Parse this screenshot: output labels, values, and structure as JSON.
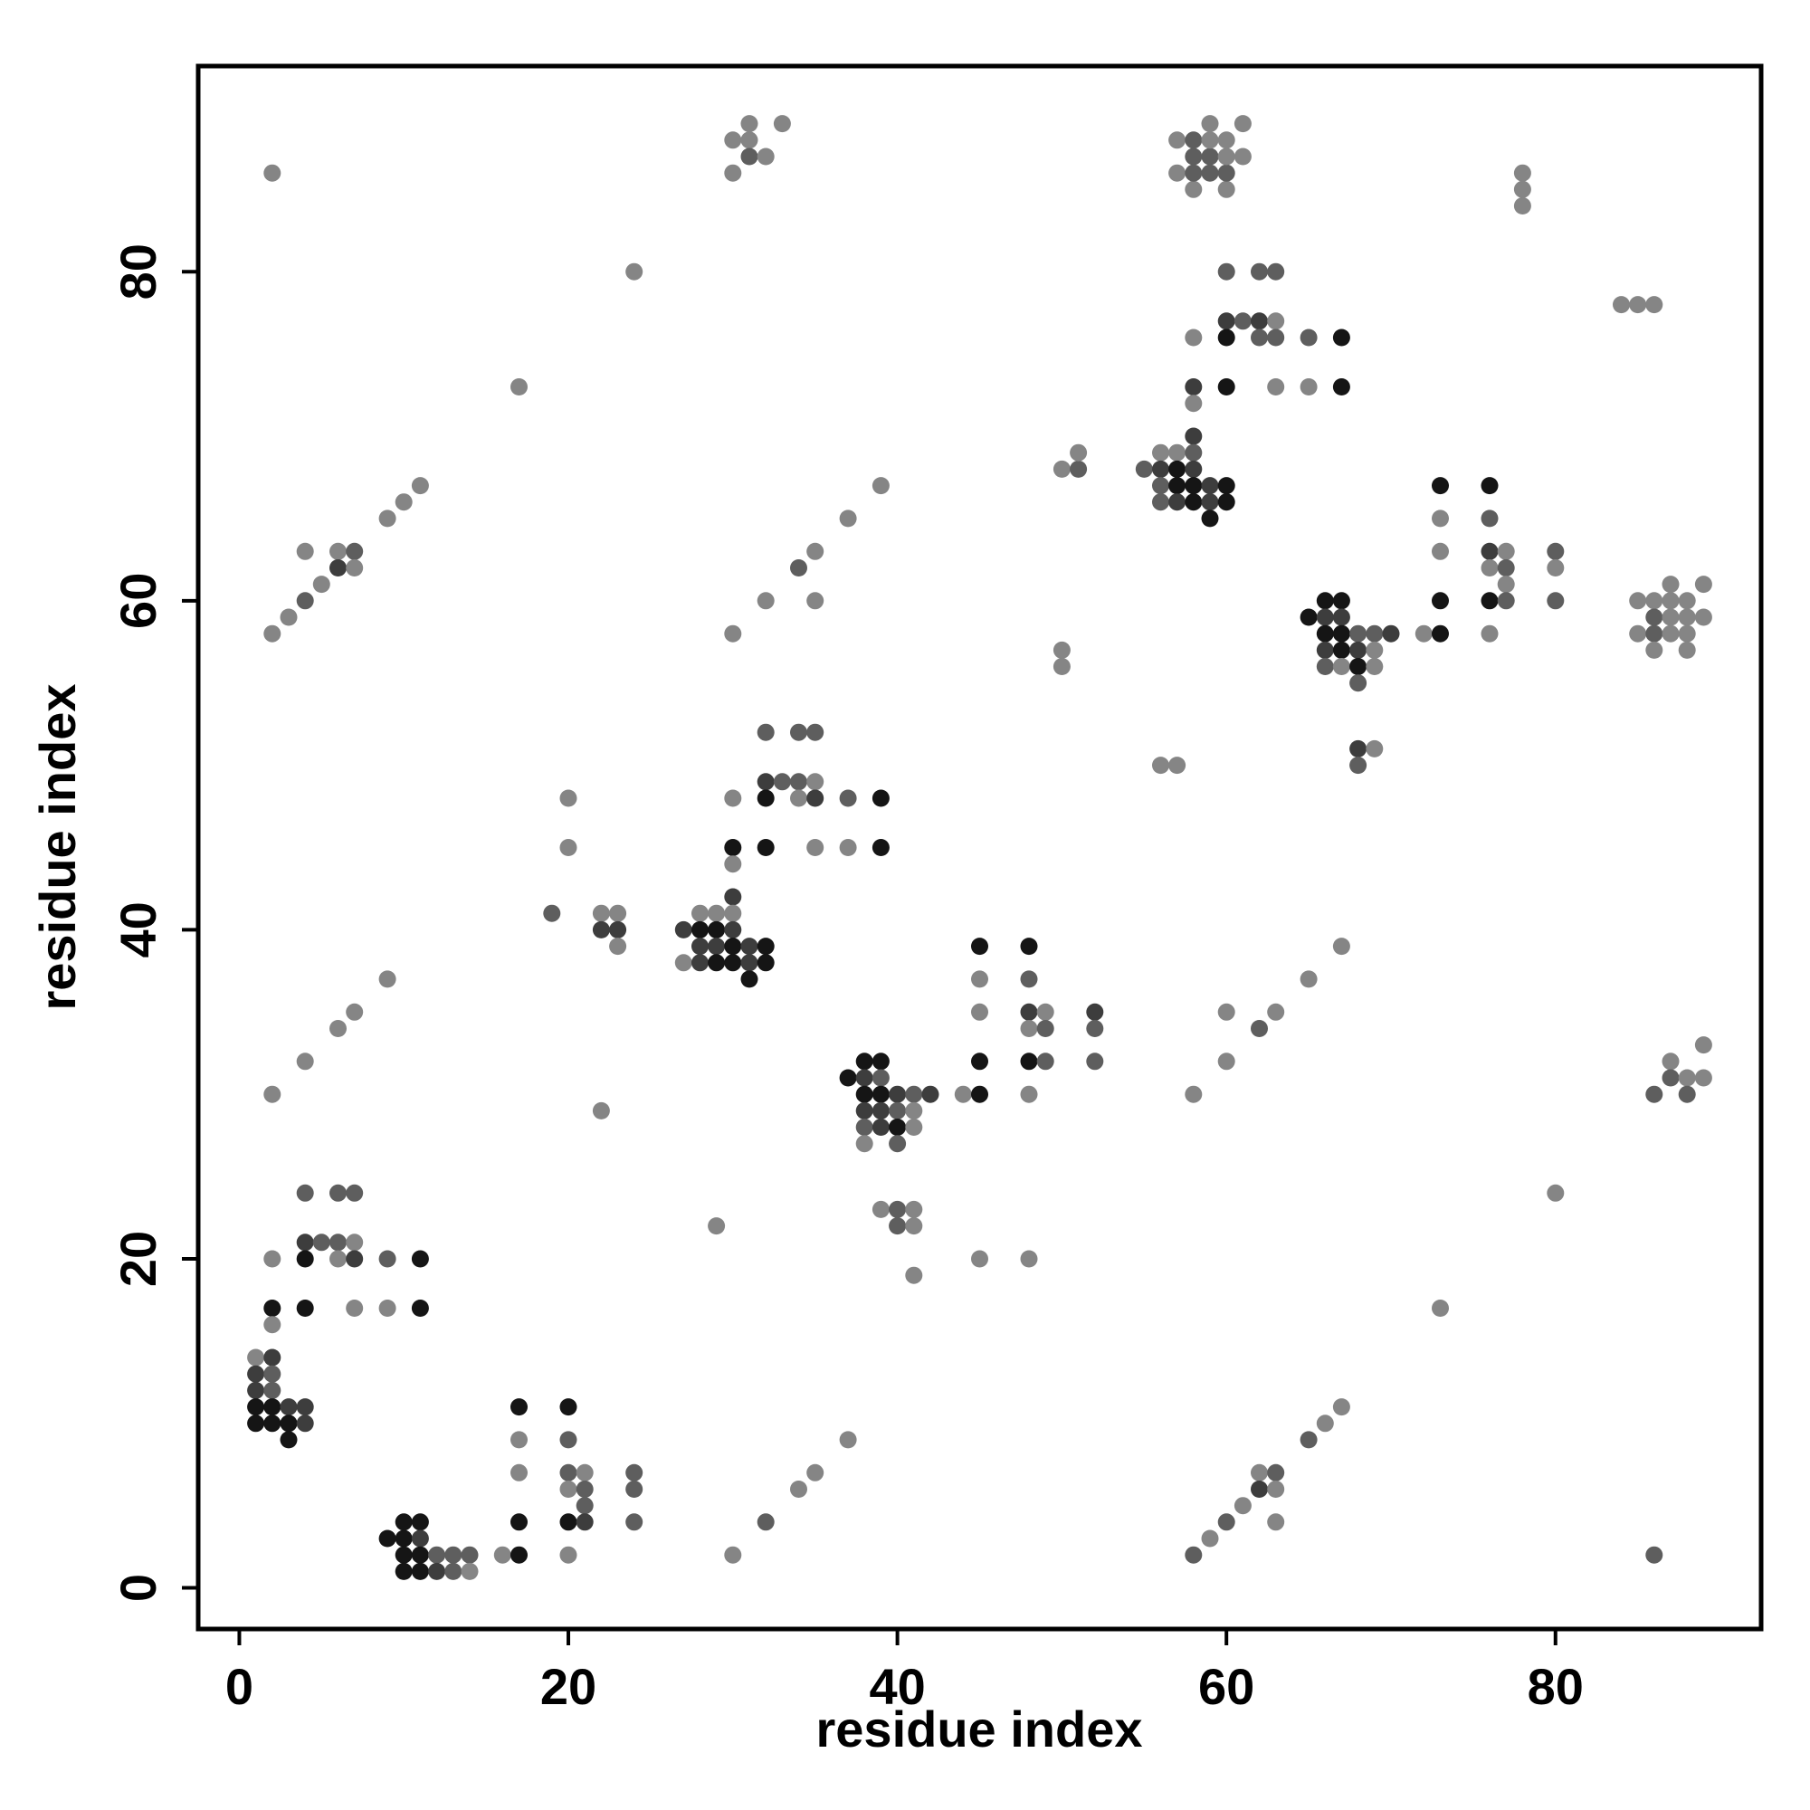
{
  "chart_data": {
    "type": "scatter",
    "xlabel": "residue index",
    "ylabel": "residue index",
    "xlim": [
      -2.5,
      92.5
    ],
    "ylim": [
      -2.5,
      92.5
    ],
    "x_ticks": [
      0,
      20,
      40,
      60,
      80
    ],
    "y_ticks": [
      0,
      20,
      40,
      60,
      80
    ],
    "grid": false,
    "legend": "none",
    "shade_levels": {
      "1": "#151515",
      "2": "#3d3d3d",
      "3": "#5e5e5e",
      "4": "#858585"
    },
    "points": [
      [
        2,
        86,
        4
      ],
      [
        30,
        86,
        4
      ],
      [
        30,
        88,
        4
      ],
      [
        31,
        89,
        4
      ],
      [
        31,
        88,
        4
      ],
      [
        31,
        87,
        3
      ],
      [
        32,
        87,
        4
      ],
      [
        33,
        89,
        4
      ],
      [
        57,
        86,
        4
      ],
      [
        57,
        88,
        4
      ],
      [
        58,
        85,
        4
      ],
      [
        58,
        86,
        3
      ],
      [
        58,
        87,
        3
      ],
      [
        58,
        88,
        3
      ],
      [
        59,
        86,
        3
      ],
      [
        59,
        87,
        3
      ],
      [
        59,
        88,
        4
      ],
      [
        59,
        89,
        4
      ],
      [
        60,
        85,
        4
      ],
      [
        60,
        86,
        3
      ],
      [
        60,
        87,
        4
      ],
      [
        60,
        88,
        4
      ],
      [
        61,
        87,
        4
      ],
      [
        61,
        89,
        4
      ],
      [
        78,
        86,
        4
      ],
      [
        78,
        85,
        4
      ],
      [
        78,
        84,
        4
      ],
      [
        24,
        80,
        4
      ],
      [
        60,
        80,
        3
      ],
      [
        62,
        80,
        3
      ],
      [
        63,
        80,
        3
      ],
      [
        84,
        78,
        4
      ],
      [
        85,
        78,
        4
      ],
      [
        86,
        78,
        4
      ],
      [
        58,
        76,
        4
      ],
      [
        60,
        77,
        2
      ],
      [
        60,
        76,
        1
      ],
      [
        61,
        77,
        3
      ],
      [
        62,
        77,
        2
      ],
      [
        62,
        76,
        3
      ],
      [
        63,
        77,
        4
      ],
      [
        63,
        76,
        3
      ],
      [
        65,
        76,
        3
      ],
      [
        67,
        76,
        1
      ],
      [
        17,
        73,
        4
      ],
      [
        58,
        73,
        2
      ],
      [
        60,
        73,
        1
      ],
      [
        63,
        73,
        4
      ],
      [
        65,
        73,
        4
      ],
      [
        67,
        73,
        1
      ],
      [
        58,
        72,
        4
      ],
      [
        58,
        70,
        2
      ],
      [
        56,
        69,
        4
      ],
      [
        57,
        69,
        4
      ],
      [
        58,
        69,
        3
      ],
      [
        50,
        68,
        4
      ],
      [
        51,
        68,
        3
      ],
      [
        51,
        69,
        4
      ],
      [
        55,
        68,
        3
      ],
      [
        56,
        68,
        2
      ],
      [
        57,
        68,
        1
      ],
      [
        58,
        68,
        2
      ],
      [
        56,
        67,
        3
      ],
      [
        57,
        67,
        1
      ],
      [
        58,
        67,
        1
      ],
      [
        59,
        67,
        2
      ],
      [
        60,
        67,
        1
      ],
      [
        56,
        66,
        3
      ],
      [
        57,
        66,
        2
      ],
      [
        58,
        66,
        1
      ],
      [
        59,
        66,
        2
      ],
      [
        60,
        66,
        1
      ],
      [
        59,
        65,
        1
      ],
      [
        11,
        67,
        4
      ],
      [
        10,
        66,
        4
      ],
      [
        9,
        65,
        4
      ],
      [
        39,
        67,
        4
      ],
      [
        37,
        65,
        4
      ],
      [
        73,
        67,
        1
      ],
      [
        76,
        67,
        1
      ],
      [
        73,
        65,
        4
      ],
      [
        76,
        65,
        3
      ],
      [
        4,
        63,
        4
      ],
      [
        6,
        63,
        4
      ],
      [
        7,
        63,
        3
      ],
      [
        6,
        62,
        2
      ],
      [
        7,
        62,
        4
      ],
      [
        5,
        61,
        4
      ],
      [
        4,
        60,
        3
      ],
      [
        3,
        59,
        4
      ],
      [
        2,
        58,
        4
      ],
      [
        35,
        63,
        4
      ],
      [
        34,
        62,
        3
      ],
      [
        32,
        60,
        4
      ],
      [
        35,
        60,
        4
      ],
      [
        30,
        58,
        4
      ],
      [
        73,
        63,
        4
      ],
      [
        76,
        63,
        2
      ],
      [
        77,
        63,
        4
      ],
      [
        80,
        63,
        3
      ],
      [
        76,
        62,
        4
      ],
      [
        77,
        62,
        3
      ],
      [
        80,
        62,
        4
      ],
      [
        77,
        61,
        4
      ],
      [
        73,
        60,
        1
      ],
      [
        76,
        60,
        1
      ],
      [
        77,
        60,
        3
      ],
      [
        80,
        60,
        3
      ],
      [
        76,
        58,
        4
      ],
      [
        72,
        58,
        4
      ],
      [
        73,
        58,
        1
      ],
      [
        87,
        61,
        4
      ],
      [
        89,
        61,
        4
      ],
      [
        85,
        60,
        4
      ],
      [
        86,
        60,
        4
      ],
      [
        87,
        60,
        4
      ],
      [
        88,
        60,
        4
      ],
      [
        86,
        59,
        3
      ],
      [
        87,
        59,
        4
      ],
      [
        88,
        59,
        4
      ],
      [
        89,
        59,
        4
      ],
      [
        85,
        58,
        4
      ],
      [
        86,
        58,
        3
      ],
      [
        87,
        58,
        4
      ],
      [
        88,
        58,
        4
      ],
      [
        86,
        57,
        4
      ],
      [
        88,
        57,
        4
      ],
      [
        66,
        60,
        1
      ],
      [
        67,
        60,
        1
      ],
      [
        65,
        59,
        1
      ],
      [
        66,
        59,
        2
      ],
      [
        67,
        59,
        2
      ],
      [
        66,
        58,
        1
      ],
      [
        67,
        58,
        1
      ],
      [
        68,
        58,
        3
      ],
      [
        69,
        58,
        3
      ],
      [
        70,
        58,
        2
      ],
      [
        66,
        57,
        2
      ],
      [
        67,
        57,
        1
      ],
      [
        68,
        57,
        2
      ],
      [
        69,
        57,
        4
      ],
      [
        66,
        56,
        3
      ],
      [
        67,
        56,
        4
      ],
      [
        68,
        56,
        1
      ],
      [
        69,
        56,
        4
      ],
      [
        68,
        55,
        3
      ],
      [
        50,
        57,
        4
      ],
      [
        50,
        56,
        4
      ],
      [
        56,
        50,
        4
      ],
      [
        57,
        50,
        4
      ],
      [
        68,
        51,
        2
      ],
      [
        69,
        51,
        4
      ],
      [
        68,
        50,
        3
      ],
      [
        32,
        52,
        3
      ],
      [
        34,
        52,
        3
      ],
      [
        35,
        52,
        3
      ],
      [
        32,
        49,
        2
      ],
      [
        33,
        49,
        3
      ],
      [
        34,
        49,
        3
      ],
      [
        35,
        49,
        4
      ],
      [
        20,
        48,
        4
      ],
      [
        30,
        48,
        4
      ],
      [
        32,
        48,
        1
      ],
      [
        34,
        48,
        4
      ],
      [
        35,
        48,
        2
      ],
      [
        37,
        48,
        3
      ],
      [
        39,
        48,
        1
      ],
      [
        20,
        45,
        4
      ],
      [
        30,
        45,
        1
      ],
      [
        32,
        45,
        1
      ],
      [
        35,
        45,
        4
      ],
      [
        37,
        45,
        4
      ],
      [
        39,
        45,
        1
      ],
      [
        30,
        44,
        4
      ],
      [
        30,
        42,
        2
      ],
      [
        19,
        41,
        3
      ],
      [
        22,
        41,
        4
      ],
      [
        23,
        41,
        4
      ],
      [
        22,
        40,
        2
      ],
      [
        23,
        40,
        2
      ],
      [
        23,
        39,
        4
      ],
      [
        28,
        41,
        4
      ],
      [
        29,
        41,
        4
      ],
      [
        30,
        41,
        4
      ],
      [
        27,
        40,
        2
      ],
      [
        28,
        40,
        1
      ],
      [
        29,
        40,
        1
      ],
      [
        30,
        40,
        2
      ],
      [
        28,
        39,
        2
      ],
      [
        29,
        39,
        2
      ],
      [
        30,
        39,
        1
      ],
      [
        31,
        39,
        2
      ],
      [
        32,
        39,
        1
      ],
      [
        27,
        38,
        4
      ],
      [
        28,
        38,
        2
      ],
      [
        29,
        38,
        1
      ],
      [
        30,
        38,
        1
      ],
      [
        31,
        38,
        2
      ],
      [
        32,
        38,
        1
      ],
      [
        31,
        37,
        1
      ],
      [
        9,
        37,
        4
      ],
      [
        7,
        35,
        4
      ],
      [
        6,
        34,
        4
      ],
      [
        4,
        32,
        4
      ],
      [
        2,
        30,
        4
      ],
      [
        22,
        29,
        4
      ],
      [
        45,
        39,
        1
      ],
      [
        48,
        39,
        1
      ],
      [
        45,
        37,
        4
      ],
      [
        48,
        37,
        3
      ],
      [
        45,
        35,
        4
      ],
      [
        48,
        35,
        2
      ],
      [
        49,
        35,
        4
      ],
      [
        52,
        35,
        2
      ],
      [
        48,
        34,
        4
      ],
      [
        49,
        34,
        3
      ],
      [
        52,
        34,
        3
      ],
      [
        45,
        32,
        1
      ],
      [
        48,
        32,
        1
      ],
      [
        49,
        32,
        3
      ],
      [
        52,
        32,
        3
      ],
      [
        44,
        30,
        4
      ],
      [
        45,
        30,
        1
      ],
      [
        48,
        30,
        4
      ],
      [
        67,
        39,
        4
      ],
      [
        65,
        37,
        4
      ],
      [
        63,
        35,
        4
      ],
      [
        62,
        34,
        3
      ],
      [
        60,
        35,
        4
      ],
      [
        60,
        32,
        4
      ],
      [
        58,
        30,
        4
      ],
      [
        89,
        33,
        4
      ],
      [
        87,
        32,
        4
      ],
      [
        86,
        30,
        3
      ],
      [
        87,
        31,
        3
      ],
      [
        88,
        31,
        4
      ],
      [
        89,
        31,
        4
      ],
      [
        88,
        30,
        3
      ],
      [
        38,
        32,
        1
      ],
      [
        39,
        32,
        1
      ],
      [
        37,
        31,
        1
      ],
      [
        38,
        31,
        2
      ],
      [
        39,
        31,
        3
      ],
      [
        38,
        30,
        1
      ],
      [
        39,
        30,
        1
      ],
      [
        40,
        30,
        2
      ],
      [
        41,
        30,
        3
      ],
      [
        42,
        30,
        2
      ],
      [
        38,
        29,
        2
      ],
      [
        39,
        29,
        2
      ],
      [
        40,
        29,
        3
      ],
      [
        41,
        29,
        4
      ],
      [
        38,
        28,
        3
      ],
      [
        39,
        28,
        2
      ],
      [
        40,
        28,
        1
      ],
      [
        41,
        28,
        4
      ],
      [
        38,
        27,
        4
      ],
      [
        40,
        27,
        3
      ],
      [
        39,
        23,
        4
      ],
      [
        40,
        23,
        3
      ],
      [
        41,
        23,
        4
      ],
      [
        40,
        22,
        3
      ],
      [
        41,
        22,
        4
      ],
      [
        41,
        19,
        4
      ],
      [
        45,
        20,
        4
      ],
      [
        48,
        20,
        4
      ],
      [
        29,
        22,
        4
      ],
      [
        80,
        24,
        4
      ],
      [
        73,
        17,
        4
      ],
      [
        4,
        24,
        3
      ],
      [
        6,
        24,
        3
      ],
      [
        7,
        24,
        3
      ],
      [
        4,
        21,
        2
      ],
      [
        5,
        21,
        3
      ],
      [
        6,
        21,
        3
      ],
      [
        7,
        21,
        4
      ],
      [
        2,
        20,
        4
      ],
      [
        4,
        20,
        1
      ],
      [
        6,
        20,
        4
      ],
      [
        7,
        20,
        2
      ],
      [
        9,
        20,
        3
      ],
      [
        11,
        20,
        1
      ],
      [
        2,
        17,
        1
      ],
      [
        4,
        17,
        1
      ],
      [
        7,
        17,
        4
      ],
      [
        9,
        17,
        4
      ],
      [
        11,
        17,
        1
      ],
      [
        2,
        16,
        4
      ],
      [
        1,
        14,
        4
      ],
      [
        2,
        14,
        2
      ],
      [
        1,
        13,
        2
      ],
      [
        2,
        13,
        3
      ],
      [
        1,
        12,
        2
      ],
      [
        2,
        12,
        3
      ],
      [
        1,
        11,
        1
      ],
      [
        2,
        11,
        1
      ],
      [
        3,
        11,
        2
      ],
      [
        4,
        11,
        2
      ],
      [
        1,
        10,
        1
      ],
      [
        2,
        10,
        1
      ],
      [
        3,
        10,
        1
      ],
      [
        4,
        10,
        2
      ],
      [
        3,
        9,
        1
      ],
      [
        17,
        11,
        1
      ],
      [
        20,
        11,
        1
      ],
      [
        17,
        9,
        4
      ],
      [
        20,
        9,
        3
      ],
      [
        17,
        7,
        4
      ],
      [
        20,
        7,
        3
      ],
      [
        21,
        7,
        4
      ],
      [
        24,
        7,
        3
      ],
      [
        20,
        6,
        4
      ],
      [
        21,
        6,
        3
      ],
      [
        24,
        6,
        3
      ],
      [
        21,
        5,
        3
      ],
      [
        17,
        4,
        1
      ],
      [
        20,
        4,
        1
      ],
      [
        21,
        4,
        2
      ],
      [
        24,
        4,
        3
      ],
      [
        16,
        2,
        4
      ],
      [
        17,
        2,
        1
      ],
      [
        20,
        2,
        4
      ],
      [
        10,
        4,
        1
      ],
      [
        11,
        4,
        1
      ],
      [
        9,
        3,
        1
      ],
      [
        10,
        3,
        1
      ],
      [
        11,
        3,
        2
      ],
      [
        10,
        2,
        1
      ],
      [
        11,
        2,
        1
      ],
      [
        12,
        2,
        3
      ],
      [
        13,
        2,
        3
      ],
      [
        14,
        2,
        3
      ],
      [
        10,
        1,
        1
      ],
      [
        11,
        1,
        1
      ],
      [
        12,
        1,
        2
      ],
      [
        13,
        1,
        3
      ],
      [
        14,
        1,
        4
      ],
      [
        37,
        9,
        4
      ],
      [
        35,
        7,
        4
      ],
      [
        34,
        6,
        4
      ],
      [
        32,
        4,
        3
      ],
      [
        30,
        2,
        4
      ],
      [
        67,
        11,
        4
      ],
      [
        66,
        10,
        4
      ],
      [
        65,
        9,
        3
      ],
      [
        62,
        7,
        4
      ],
      [
        63,
        7,
        3
      ],
      [
        62,
        6,
        2
      ],
      [
        63,
        6,
        4
      ],
      [
        61,
        5,
        4
      ],
      [
        60,
        4,
        3
      ],
      [
        63,
        4,
        4
      ],
      [
        59,
        3,
        4
      ],
      [
        58,
        2,
        3
      ],
      [
        86,
        2,
        3
      ]
    ]
  }
}
